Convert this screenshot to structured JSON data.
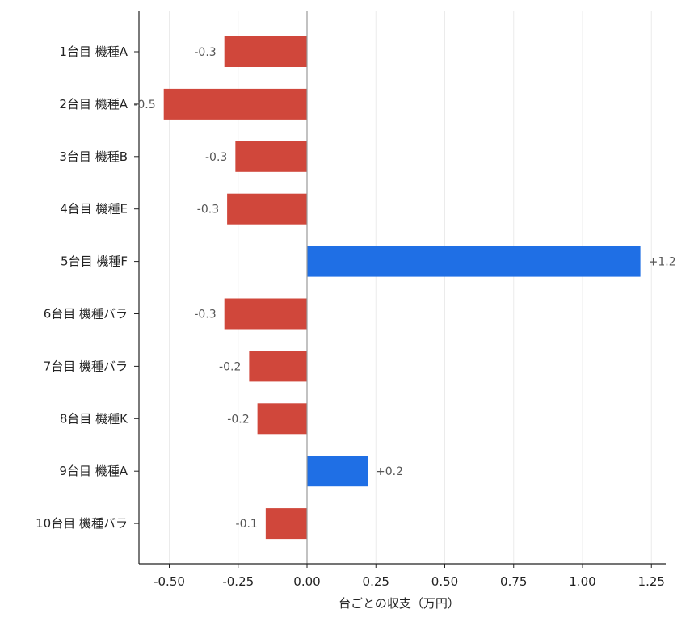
{
  "chart_data": {
    "type": "bar",
    "orientation": "horizontal",
    "categories": [
      "1台目 機種A",
      "2台目 機種A",
      "3台目 機種B",
      "4台目 機種E",
      "5台目 機種F",
      "6台目 機種バラ",
      "7台目 機種バラ",
      "8台目 機種K",
      "9台目 機種A",
      "10台目 機種バラ"
    ],
    "values": [
      -0.3,
      -0.52,
      -0.26,
      -0.29,
      1.21,
      -0.3,
      -0.21,
      -0.18,
      0.22,
      -0.15
    ],
    "data_labels": [
      "-0.3",
      "-0.5",
      "-0.3",
      "-0.3",
      "+1.2",
      "-0.3",
      "-0.2",
      "-0.2",
      "+0.2",
      "-0.1"
    ],
    "xlabel": "台ごとの収支（万円）",
    "ylabel": "",
    "xlim": [
      -0.6,
      1.3
    ],
    "xticks": [
      -0.5,
      -0.25,
      0,
      0.25,
      0.5,
      0.75,
      1.0,
      1.25
    ],
    "xtick_labels": [
      "-0.50",
      "-0.25",
      "0.00",
      "0.25",
      "0.50",
      "0.75",
      "1.00",
      "1.25"
    ],
    "grid": "vertical",
    "colors": {
      "positive": "#1f6fe5",
      "negative": "#d0473b",
      "zero_line": "#999999",
      "grid": "#ebebeb",
      "axis": "#222222"
    }
  }
}
